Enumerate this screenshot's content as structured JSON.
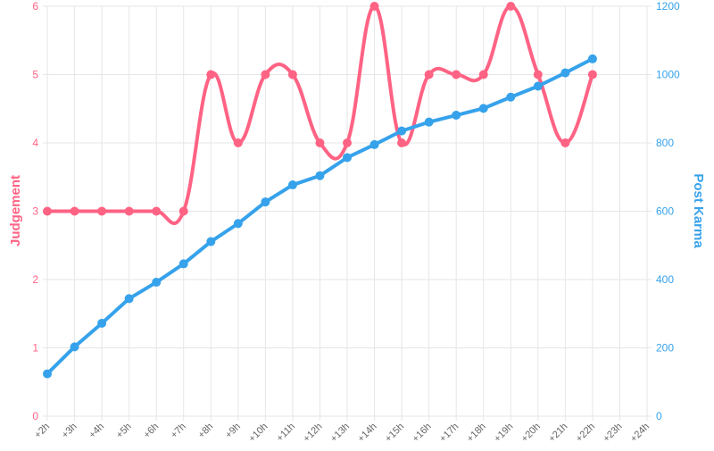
{
  "chart_data": {
    "type": "line",
    "x": [
      "+2h",
      "+3h",
      "+4h",
      "+5h",
      "+6h",
      "+7h",
      "+8h",
      "+9h",
      "+10h",
      "+11h",
      "+12h",
      "+13h",
      "+14h",
      "+15h",
      "+16h",
      "+17h",
      "+18h",
      "+19h",
      "+20h",
      "+21h",
      "+22h",
      "+23h",
      "+24h"
    ],
    "series": [
      {
        "name": "Judgement",
        "axis": "left",
        "color": "#ff6384",
        "values": [
          3,
          3,
          3,
          3,
          3,
          3,
          5,
          4,
          5,
          5,
          4,
          4,
          6,
          4,
          5,
          5,
          5,
          6,
          5,
          4,
          5,
          null,
          null
        ]
      },
      {
        "name": "Post Karma",
        "axis": "right",
        "color": "#36a2eb",
        "values": [
          124,
          203,
          272,
          344,
          392,
          446,
          511,
          564,
          627,
          677,
          704,
          757,
          795,
          835,
          861,
          881,
          901,
          934,
          966,
          1005,
          1046,
          null,
          null
        ]
      }
    ],
    "ylabel_left": "Judgement",
    "ylabel_right": "Post Karma",
    "ylim_left": [
      0,
      6
    ],
    "yticks_left": [
      "0",
      "1",
      "2",
      "3",
      "4",
      "5",
      "6"
    ],
    "ylim_right": [
      0,
      1200
    ],
    "yticks_right": [
      "0",
      "200",
      "400",
      "600",
      "800",
      "1000",
      "1200"
    ],
    "grid": true,
    "legend": "none"
  }
}
